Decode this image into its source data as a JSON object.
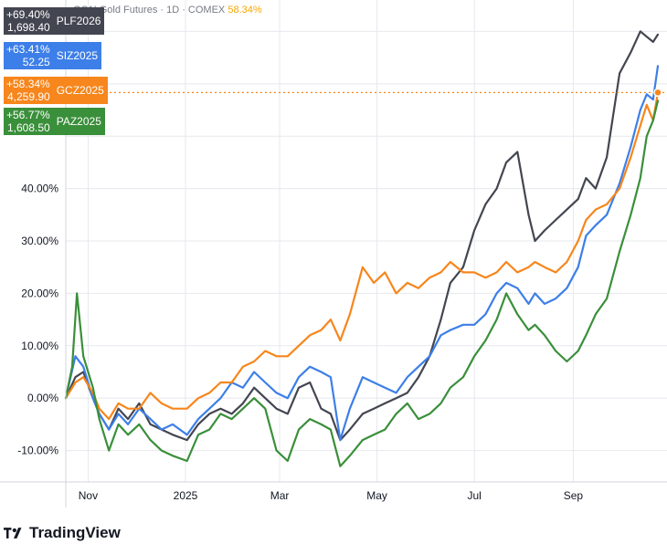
{
  "header": {
    "title": "GC1! Gold Futures · 1D · COMEX",
    "change": "58.34%"
  },
  "badges": [
    {
      "pct": "+69.40%",
      "price": "1,698.40",
      "symbol": "PLF2026",
      "color": "#434651"
    },
    {
      "pct": "+63.41%",
      "price": "52.25",
      "symbol": "SIZ2025",
      "color": "#3d7fe8"
    },
    {
      "pct": "+58.34%",
      "price": "4,259.90",
      "symbol": "GCZ2025",
      "color": "#f7861c"
    },
    {
      "pct": "+56.77%",
      "price": "1,608.50",
      "symbol": "PAZ2025",
      "color": "#3a8f3a"
    }
  ],
  "logo": {
    "text": "TradingView"
  },
  "chart_data": {
    "type": "line",
    "ylim": [
      -16,
      76
    ],
    "x_range": [
      "2024-10-18",
      "2025-10-24"
    ],
    "y_ticks": [
      {
        "v": -10,
        "label": "-10.00%"
      },
      {
        "v": 0,
        "label": "0.00%"
      },
      {
        "v": 10,
        "label": "10.00%"
      },
      {
        "v": 20,
        "label": "20.00%"
      },
      {
        "v": 30,
        "label": "30.00%"
      },
      {
        "v": 40,
        "label": "40.00%"
      }
    ],
    "x_ticks": [
      {
        "date": "2024-11-01",
        "label": "Nov"
      },
      {
        "date": "2025-01-01",
        "label": "2025"
      },
      {
        "date": "2025-03-01",
        "label": "Mar"
      },
      {
        "date": "2025-05-01",
        "label": "May"
      },
      {
        "date": "2025-07-01",
        "label": "Jul"
      },
      {
        "date": "2025-09-01",
        "label": "Sep"
      }
    ],
    "grid": true,
    "series": [
      {
        "name": "PLF2026",
        "color": "#434651",
        "points": [
          [
            "2024-10-18",
            0
          ],
          [
            "2024-10-24",
            4
          ],
          [
            "2024-10-29",
            5
          ],
          [
            "2024-11-04",
            0
          ],
          [
            "2024-11-08",
            -3
          ],
          [
            "2024-11-14",
            -6
          ],
          [
            "2024-11-20",
            -2
          ],
          [
            "2024-11-26",
            -4
          ],
          [
            "2024-12-03",
            -1
          ],
          [
            "2024-12-10",
            -5
          ],
          [
            "2024-12-17",
            -6
          ],
          [
            "2024-12-24",
            -7
          ],
          [
            "2025-01-02",
            -8
          ],
          [
            "2025-01-09",
            -5
          ],
          [
            "2025-01-16",
            -3
          ],
          [
            "2025-01-23",
            -2
          ],
          [
            "2025-01-30",
            -3
          ],
          [
            "2025-02-06",
            -1
          ],
          [
            "2025-02-13",
            2
          ],
          [
            "2025-02-20",
            0
          ],
          [
            "2025-02-27",
            -2
          ],
          [
            "2025-03-06",
            -3
          ],
          [
            "2025-03-13",
            2
          ],
          [
            "2025-03-20",
            3
          ],
          [
            "2025-03-27",
            -2
          ],
          [
            "2025-04-02",
            -3
          ],
          [
            "2025-04-08",
            -8
          ],
          [
            "2025-04-14",
            -6
          ],
          [
            "2025-04-22",
            -3
          ],
          [
            "2025-04-29",
            -2
          ],
          [
            "2025-05-06",
            -1
          ],
          [
            "2025-05-13",
            0
          ],
          [
            "2025-05-20",
            1
          ],
          [
            "2025-05-27",
            4
          ],
          [
            "2025-06-03",
            8
          ],
          [
            "2025-06-10",
            15
          ],
          [
            "2025-06-16",
            22
          ],
          [
            "2025-06-24",
            25
          ],
          [
            "2025-07-01",
            32
          ],
          [
            "2025-07-08",
            37
          ],
          [
            "2025-07-15",
            40
          ],
          [
            "2025-07-21",
            45
          ],
          [
            "2025-07-28",
            47
          ],
          [
            "2025-08-04",
            35
          ],
          [
            "2025-08-08",
            30
          ],
          [
            "2025-08-14",
            32
          ],
          [
            "2025-08-21",
            34
          ],
          [
            "2025-08-28",
            36
          ],
          [
            "2025-09-04",
            38
          ],
          [
            "2025-09-09",
            42
          ],
          [
            "2025-09-15",
            40
          ],
          [
            "2025-09-22",
            46
          ],
          [
            "2025-09-30",
            62
          ],
          [
            "2025-10-07",
            66
          ],
          [
            "2025-10-13",
            70
          ],
          [
            "2025-10-17",
            69
          ],
          [
            "2025-10-21",
            68
          ],
          [
            "2025-10-24",
            69.4
          ]
        ]
      },
      {
        "name": "SIZ2025",
        "color": "#3d7fe8",
        "points": [
          [
            "2024-10-18",
            0
          ],
          [
            "2024-10-24",
            8
          ],
          [
            "2024-10-29",
            6
          ],
          [
            "2024-11-04",
            0
          ],
          [
            "2024-11-08",
            -3
          ],
          [
            "2024-11-14",
            -6
          ],
          [
            "2024-11-20",
            -3
          ],
          [
            "2024-11-26",
            -5
          ],
          [
            "2024-12-03",
            -2
          ],
          [
            "2024-12-10",
            -4
          ],
          [
            "2024-12-17",
            -6
          ],
          [
            "2024-12-24",
            -5
          ],
          [
            "2025-01-02",
            -7
          ],
          [
            "2025-01-09",
            -4
          ],
          [
            "2025-01-16",
            -2
          ],
          [
            "2025-01-23",
            0
          ],
          [
            "2025-01-30",
            3
          ],
          [
            "2025-02-06",
            2
          ],
          [
            "2025-02-13",
            5
          ],
          [
            "2025-02-20",
            3
          ],
          [
            "2025-02-27",
            1
          ],
          [
            "2025-03-06",
            0
          ],
          [
            "2025-03-13",
            4
          ],
          [
            "2025-03-20",
            6
          ],
          [
            "2025-03-27",
            5
          ],
          [
            "2025-04-02",
            4
          ],
          [
            "2025-04-08",
            -8
          ],
          [
            "2025-04-14",
            -2
          ],
          [
            "2025-04-22",
            4
          ],
          [
            "2025-04-29",
            3
          ],
          [
            "2025-05-06",
            2
          ],
          [
            "2025-05-13",
            1
          ],
          [
            "2025-05-20",
            4
          ],
          [
            "2025-05-27",
            6
          ],
          [
            "2025-06-03",
            8
          ],
          [
            "2025-06-10",
            12
          ],
          [
            "2025-06-16",
            13
          ],
          [
            "2025-06-24",
            14
          ],
          [
            "2025-07-01",
            14
          ],
          [
            "2025-07-08",
            16
          ],
          [
            "2025-07-15",
            20
          ],
          [
            "2025-07-21",
            22
          ],
          [
            "2025-07-28",
            21
          ],
          [
            "2025-08-04",
            18
          ],
          [
            "2025-08-08",
            20
          ],
          [
            "2025-08-14",
            18
          ],
          [
            "2025-08-21",
            19
          ],
          [
            "2025-08-28",
            21
          ],
          [
            "2025-09-04",
            25
          ],
          [
            "2025-09-09",
            31
          ],
          [
            "2025-09-15",
            33
          ],
          [
            "2025-09-22",
            35
          ],
          [
            "2025-09-30",
            41
          ],
          [
            "2025-10-07",
            48
          ],
          [
            "2025-10-13",
            55
          ],
          [
            "2025-10-17",
            58
          ],
          [
            "2025-10-21",
            57
          ],
          [
            "2025-10-24",
            63.4
          ]
        ]
      },
      {
        "name": "GCZ2025",
        "color": "#f7861c",
        "points": [
          [
            "2024-10-18",
            0
          ],
          [
            "2024-10-24",
            3
          ],
          [
            "2024-10-29",
            4
          ],
          [
            "2024-11-04",
            1
          ],
          [
            "2024-11-08",
            -2
          ],
          [
            "2024-11-14",
            -4
          ],
          [
            "2024-11-20",
            -1
          ],
          [
            "2024-11-26",
            -2
          ],
          [
            "2024-12-03",
            -2
          ],
          [
            "2024-12-10",
            1
          ],
          [
            "2024-12-17",
            -1
          ],
          [
            "2024-12-24",
            -2
          ],
          [
            "2025-01-02",
            -2
          ],
          [
            "2025-01-09",
            0
          ],
          [
            "2025-01-16",
            1
          ],
          [
            "2025-01-23",
            3
          ],
          [
            "2025-01-30",
            3
          ],
          [
            "2025-02-06",
            6
          ],
          [
            "2025-02-13",
            7
          ],
          [
            "2025-02-20",
            9
          ],
          [
            "2025-02-27",
            8
          ],
          [
            "2025-03-06",
            8
          ],
          [
            "2025-03-13",
            10
          ],
          [
            "2025-03-20",
            12
          ],
          [
            "2025-03-27",
            13
          ],
          [
            "2025-04-02",
            15
          ],
          [
            "2025-04-08",
            11
          ],
          [
            "2025-04-14",
            16
          ],
          [
            "2025-04-22",
            25
          ],
          [
            "2025-04-29",
            22
          ],
          [
            "2025-05-06",
            24
          ],
          [
            "2025-05-13",
            20
          ],
          [
            "2025-05-20",
            22
          ],
          [
            "2025-05-27",
            21
          ],
          [
            "2025-06-03",
            23
          ],
          [
            "2025-06-10",
            24
          ],
          [
            "2025-06-16",
            26
          ],
          [
            "2025-06-24",
            24
          ],
          [
            "2025-07-01",
            24
          ],
          [
            "2025-07-08",
            23
          ],
          [
            "2025-07-15",
            24
          ],
          [
            "2025-07-21",
            26
          ],
          [
            "2025-07-28",
            24
          ],
          [
            "2025-08-04",
            25
          ],
          [
            "2025-08-08",
            26
          ],
          [
            "2025-08-14",
            25
          ],
          [
            "2025-08-21",
            24
          ],
          [
            "2025-08-28",
            26
          ],
          [
            "2025-09-04",
            30
          ],
          [
            "2025-09-09",
            34
          ],
          [
            "2025-09-15",
            36
          ],
          [
            "2025-09-22",
            37
          ],
          [
            "2025-09-30",
            40
          ],
          [
            "2025-10-07",
            46
          ],
          [
            "2025-10-13",
            52
          ],
          [
            "2025-10-17",
            56
          ],
          [
            "2025-10-21",
            53
          ],
          [
            "2025-10-24",
            58.34
          ]
        ]
      },
      {
        "name": "PAZ2025",
        "color": "#3a8f3a",
        "points": [
          [
            "2024-10-18",
            0
          ],
          [
            "2024-10-22",
            6
          ],
          [
            "2024-10-25",
            20
          ],
          [
            "2024-10-29",
            8
          ],
          [
            "2024-11-04",
            2
          ],
          [
            "2024-11-08",
            -4
          ],
          [
            "2024-11-14",
            -10
          ],
          [
            "2024-11-20",
            -5
          ],
          [
            "2024-11-26",
            -7
          ],
          [
            "2024-12-03",
            -5
          ],
          [
            "2024-12-10",
            -8
          ],
          [
            "2024-12-17",
            -10
          ],
          [
            "2024-12-24",
            -11
          ],
          [
            "2025-01-02",
            -12
          ],
          [
            "2025-01-09",
            -7
          ],
          [
            "2025-01-16",
            -6
          ],
          [
            "2025-01-23",
            -3
          ],
          [
            "2025-01-30",
            -4
          ],
          [
            "2025-02-06",
            -2
          ],
          [
            "2025-02-13",
            0
          ],
          [
            "2025-02-20",
            -2
          ],
          [
            "2025-02-27",
            -10
          ],
          [
            "2025-03-06",
            -12
          ],
          [
            "2025-03-13",
            -6
          ],
          [
            "2025-03-20",
            -4
          ],
          [
            "2025-03-27",
            -5
          ],
          [
            "2025-04-02",
            -6
          ],
          [
            "2025-04-08",
            -13
          ],
          [
            "2025-04-14",
            -11
          ],
          [
            "2025-04-22",
            -8
          ],
          [
            "2025-04-29",
            -7
          ],
          [
            "2025-05-06",
            -6
          ],
          [
            "2025-05-13",
            -3
          ],
          [
            "2025-05-20",
            -1
          ],
          [
            "2025-05-27",
            -4
          ],
          [
            "2025-06-03",
            -3
          ],
          [
            "2025-06-10",
            -1
          ],
          [
            "2025-06-16",
            2
          ],
          [
            "2025-06-24",
            4
          ],
          [
            "2025-07-01",
            8
          ],
          [
            "2025-07-08",
            11
          ],
          [
            "2025-07-15",
            15
          ],
          [
            "2025-07-21",
            20
          ],
          [
            "2025-07-28",
            16
          ],
          [
            "2025-08-04",
            13
          ],
          [
            "2025-08-08",
            14
          ],
          [
            "2025-08-14",
            12
          ],
          [
            "2025-08-21",
            9
          ],
          [
            "2025-08-28",
            7
          ],
          [
            "2025-09-04",
            9
          ],
          [
            "2025-09-09",
            12
          ],
          [
            "2025-09-15",
            16
          ],
          [
            "2025-09-22",
            19
          ],
          [
            "2025-09-30",
            28
          ],
          [
            "2025-10-07",
            35
          ],
          [
            "2025-10-13",
            42
          ],
          [
            "2025-10-17",
            50
          ],
          [
            "2025-10-21",
            53
          ],
          [
            "2025-10-24",
            56.77
          ]
        ]
      }
    ]
  }
}
